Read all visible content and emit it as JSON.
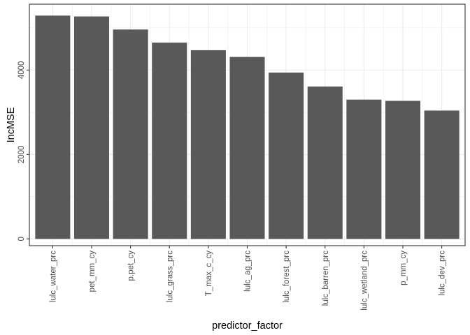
{
  "chart_data": {
    "type": "bar",
    "xlabel": "predictor_factor",
    "ylabel": "IncMSE",
    "categories": [
      "lulc_water_prc",
      "pet_mm_cy",
      "p.pet_cy",
      "lulc_grass_prc",
      "T_max_c_cy",
      "lulc_ag_prc",
      "lulc_forest_prc",
      "lulc_barren_prc",
      "lulc_wetland_prc",
      "p_mm_cy",
      "lulc_dev_prc"
    ],
    "values": [
      5290,
      5270,
      4960,
      4650,
      4470,
      4310,
      3940,
      3610,
      3300,
      3270,
      3040
    ],
    "ylim": [
      -160,
      5560
    ],
    "yticks": [
      0,
      2000,
      4000
    ],
    "grid": true,
    "bar_color": "#595959",
    "grid_color": "#ebebeb",
    "panel_border_color": "#333333"
  }
}
